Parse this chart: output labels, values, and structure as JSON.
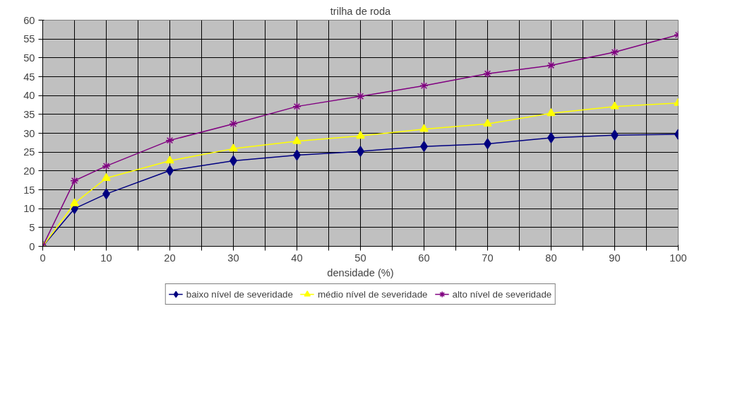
{
  "chart_data": {
    "type": "line",
    "title": "trilha de roda",
    "xlabel": "densidade (%)",
    "x": [
      0,
      5,
      10,
      20,
      30,
      40,
      50,
      60,
      70,
      80,
      90,
      100
    ],
    "xlim": [
      0,
      100
    ],
    "xticks": [
      0,
      {
        "value": 5,
        "label": null
      },
      10,
      {
        "value": 15,
        "label": null
      },
      20,
      {
        "value": 25,
        "label": null
      },
      30,
      {
        "value": 35,
        "label": null
      },
      40,
      {
        "value": 45,
        "label": null
      },
      50,
      {
        "value": 55,
        "label": null
      },
      60,
      {
        "value": 65,
        "label": null
      },
      70,
      {
        "value": 75,
        "label": null
      },
      80,
      {
        "value": 85,
        "label": null
      },
      90,
      {
        "value": 95,
        "label": null
      },
      100
    ],
    "ylim": [
      0,
      60
    ],
    "yticks": [
      0,
      5,
      10,
      15,
      20,
      25,
      30,
      35,
      40,
      45,
      50,
      55,
      60
    ],
    "grid": true,
    "legend": "bottom",
    "series": [
      {
        "name": "baixo nível de severidade",
        "color": "#000080",
        "marker": "diamond",
        "values": [
          0,
          10,
          13.9,
          20.1,
          22.7,
          24.2,
          25.2,
          26.5,
          27.2,
          28.8,
          29.5,
          29.7
        ]
      },
      {
        "name": "médio nível de severidade",
        "color": "#ffff00",
        "marker": "triangle",
        "values": [
          0,
          11.4,
          18.1,
          22.7,
          25.9,
          27.9,
          29.3,
          31.1,
          32.5,
          35.3,
          37.1,
          38
        ]
      },
      {
        "name": "alto nível de severidade",
        "color": "#800080",
        "marker": "cross",
        "values": [
          0,
          17.4,
          21.3,
          28.1,
          32.5,
          37.1,
          39.8,
          42.6,
          45.8,
          48,
          51.5,
          56.1
        ]
      }
    ]
  }
}
